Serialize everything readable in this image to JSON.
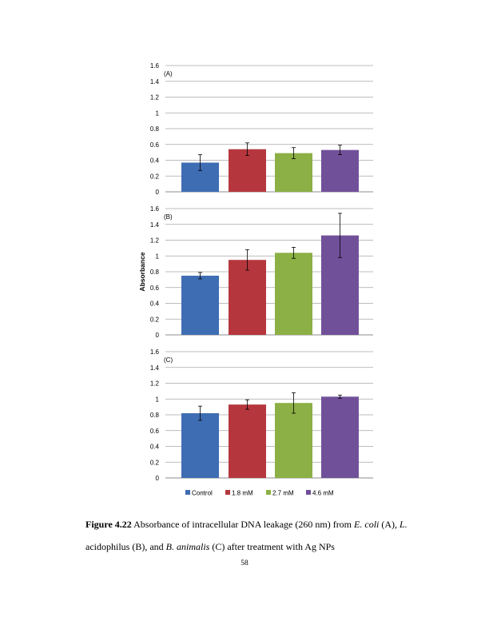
{
  "chart_data": {
    "type": "bar",
    "ylabel": "Absorbance",
    "categories": [
      "Control",
      "1.8 mM",
      "2.7 mM",
      "4.6 mM"
    ],
    "colors": [
      "#3e6db3",
      "#b5373d",
      "#8cb045",
      "#71509a"
    ],
    "ylim": [
      0,
      1.6
    ],
    "yticks": [
      "0",
      "0.2",
      "0.4",
      "0.6",
      "0.8",
      "1",
      "1.2",
      "1.4",
      "1.6"
    ],
    "grid": true,
    "legend_position": "bottom",
    "panels": [
      {
        "label": "(A)",
        "values": [
          0.37,
          0.54,
          0.49,
          0.53
        ],
        "errors": [
          0.1,
          0.08,
          0.07,
          0.06
        ]
      },
      {
        "label": "(B)",
        "values": [
          0.75,
          0.95,
          1.04,
          1.26
        ],
        "errors": [
          0.04,
          0.13,
          0.07,
          0.28
        ]
      },
      {
        "label": "(C)",
        "values": [
          0.82,
          0.93,
          0.95,
          1.03
        ],
        "errors": [
          0.09,
          0.06,
          0.13,
          0.02
        ]
      }
    ]
  },
  "caption": {
    "label": "Figure 4.22",
    "line1_text": " Absorbance of intracellular DNA leakage (260 nm) from ",
    "line1_species1": "E. coli",
    "line1_mid": " (A), ",
    "line1_species2": "L.",
    "line2_start": "acidophilus (B), and ",
    "line2_species": "B. animalis",
    "line2_end": " (C) after treatment with Ag NPs"
  },
  "page_number": "58"
}
